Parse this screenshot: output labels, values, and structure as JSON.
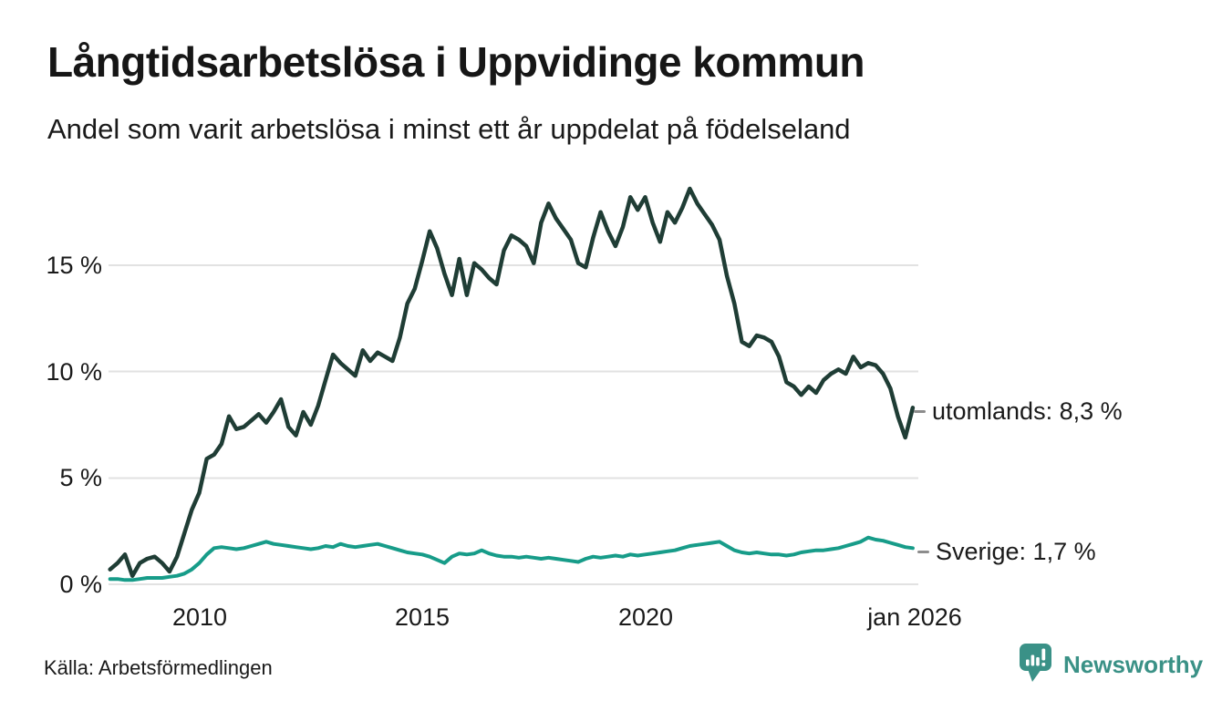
{
  "chart_data": {
    "type": "line",
    "title": "Långtidsarbetslösa i Uppvidinge kommun",
    "subtitle": "Andel som varit arbetslösa i minst ett år uppdelat på födelseland",
    "unit": "%",
    "grid": true,
    "legend_position": "end-of-line",
    "x_range": [
      2008,
      2026.04
    ],
    "x_sampling": {
      "start_year": 2008,
      "points_per_year": 6,
      "note": "values estimated from chart at 2-month resolution, Jan 2008 - Jan 2026"
    },
    "x_axis": {
      "ticks": [
        {
          "t": 2010,
          "label": "2010"
        },
        {
          "t": 2015,
          "label": "2015"
        },
        {
          "t": 2020,
          "label": "2020"
        },
        {
          "t": 2026.04,
          "label": "jan 2026"
        }
      ]
    },
    "y_axis": {
      "range": [
        0,
        19
      ],
      "ticks": [
        {
          "v": 0,
          "label": "0 %"
        },
        {
          "v": 5,
          "label": "5 %"
        },
        {
          "v": 10,
          "label": "10 %"
        },
        {
          "v": 15,
          "label": "15 %"
        }
      ]
    },
    "series": [
      {
        "name": "utomlands",
        "end_label": "utomlands: 8,3 %",
        "last_value": "8,3 %",
        "color": "#1f3d35",
        "stroke_width": 4.5,
        "values": [
          0.7,
          1.0,
          1.4,
          0.4,
          1.0,
          1.2,
          1.3,
          1.0,
          0.6,
          1.3,
          2.4,
          3.5,
          4.3,
          5.9,
          6.1,
          6.6,
          7.9,
          7.3,
          7.4,
          7.7,
          8.0,
          7.6,
          8.1,
          8.7,
          7.4,
          7.0,
          8.1,
          7.5,
          8.4,
          9.6,
          10.8,
          10.4,
          10.1,
          9.8,
          11.0,
          10.5,
          10.9,
          10.7,
          10.5,
          11.6,
          13.2,
          13.9,
          15.2,
          16.6,
          15.8,
          14.6,
          13.6,
          15.3,
          13.6,
          15.1,
          14.8,
          14.4,
          14.1,
          15.7,
          16.4,
          16.2,
          15.9,
          15.1,
          17.0,
          17.9,
          17.2,
          16.7,
          16.2,
          15.1,
          14.9,
          16.3,
          17.5,
          16.6,
          15.9,
          16.8,
          18.2,
          17.6,
          18.2,
          17.0,
          16.1,
          17.5,
          17.0,
          17.7,
          18.6,
          17.9,
          17.4,
          16.9,
          16.2,
          14.5,
          13.2,
          11.4,
          11.2,
          11.7,
          11.6,
          11.4,
          10.7,
          9.5,
          9.3,
          8.9,
          9.3,
          9.0,
          9.6,
          9.9,
          10.1,
          9.9,
          10.7,
          10.2,
          10.4,
          10.3,
          9.9,
          9.2,
          7.9,
          6.9,
          8.3
        ]
      },
      {
        "name": "Sverige",
        "end_label": "Sverige: 1,7 %",
        "last_value": "1,7 %",
        "color": "#179c89",
        "stroke_width": 4,
        "values": [
          0.25,
          0.25,
          0.2,
          0.2,
          0.25,
          0.3,
          0.3,
          0.3,
          0.35,
          0.4,
          0.5,
          0.7,
          1.0,
          1.4,
          1.7,
          1.75,
          1.7,
          1.65,
          1.7,
          1.8,
          1.9,
          2.0,
          1.9,
          1.85,
          1.8,
          1.75,
          1.7,
          1.65,
          1.7,
          1.8,
          1.75,
          1.9,
          1.8,
          1.75,
          1.8,
          1.85,
          1.9,
          1.8,
          1.7,
          1.6,
          1.5,
          1.45,
          1.4,
          1.3,
          1.15,
          1.0,
          1.3,
          1.45,
          1.4,
          1.45,
          1.6,
          1.45,
          1.35,
          1.3,
          1.3,
          1.25,
          1.3,
          1.25,
          1.2,
          1.25,
          1.2,
          1.15,
          1.1,
          1.05,
          1.2,
          1.3,
          1.25,
          1.3,
          1.35,
          1.3,
          1.4,
          1.35,
          1.4,
          1.45,
          1.5,
          1.55,
          1.6,
          1.7,
          1.8,
          1.85,
          1.9,
          1.95,
          2.0,
          1.8,
          1.6,
          1.5,
          1.45,
          1.5,
          1.45,
          1.4,
          1.4,
          1.35,
          1.4,
          1.5,
          1.55,
          1.6,
          1.6,
          1.65,
          1.7,
          1.8,
          1.9,
          2.0,
          2.2,
          2.1,
          2.05,
          1.95,
          1.85,
          1.75,
          1.7
        ]
      }
    ],
    "colors": {
      "grid": "#e2e2e2",
      "label_connector": "#8c8c8c",
      "text": "#1a1a1a"
    }
  },
  "footer": {
    "source": "Källa: Arbetsförmedlingen",
    "brand": "Newsworthy",
    "brand_color": "#3a9187"
  }
}
